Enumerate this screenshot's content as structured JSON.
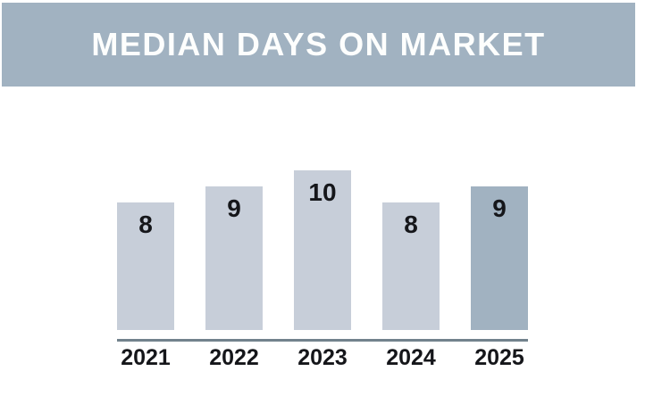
{
  "header": {
    "title": "MEDIAN DAYS ON MARKET",
    "background": "#a1b2c1",
    "text_color": "#fdfefd"
  },
  "chart_data": {
    "type": "bar",
    "title": "MEDIAN DAYS ON MARKET",
    "categories": [
      "2021",
      "2022",
      "2023",
      "2024",
      "2025"
    ],
    "values": [
      8,
      9,
      10,
      8,
      9
    ],
    "xlabel": "",
    "ylabel": "",
    "ylim": [
      0,
      10
    ],
    "grid": false,
    "legend": false,
    "value_label_position": "inside-top",
    "bar_color": "#c7ced9",
    "highlight_color": "#a1b2c1",
    "highlight_index": 4,
    "baseline_color": "#72828d",
    "label_color": "#15161a"
  }
}
